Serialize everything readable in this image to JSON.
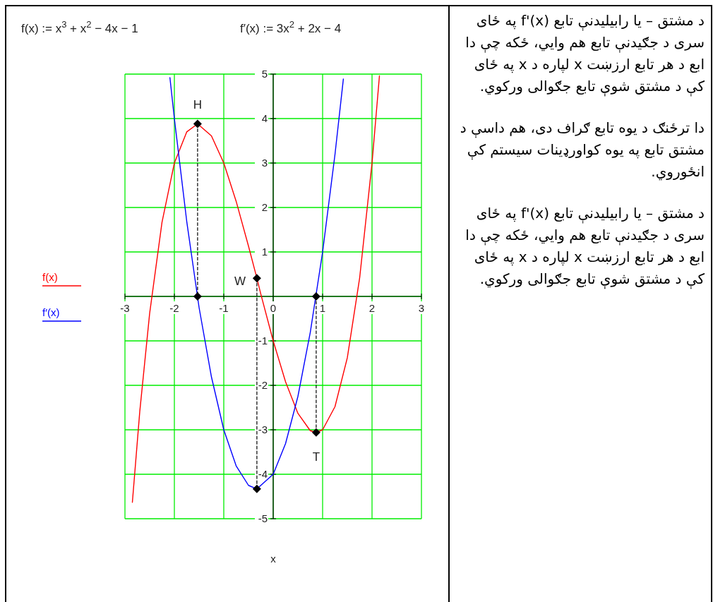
{
  "chart_data": {
    "type": "line",
    "title": "f(x) := x$^{3}$ + x$^{2}$ − 4x − 1",
    "subtitle": "f′(x) := 3x$^{2}$ + 2x − 4",
    "xlabel": "x",
    "xlim": [
      -3,
      3
    ],
    "ylim": [
      -5,
      5
    ],
    "xticks": [
      -3,
      -2,
      -1,
      0,
      1,
      2,
      3
    ],
    "yticks": [
      -5,
      -4,
      -3,
      -2,
      -1,
      {
        "value": 0,
        "label": null
      },
      1,
      2,
      3,
      4,
      5
    ],
    "grid": true,
    "legend": "left",
    "series": [
      {
        "name": "f(x)",
        "color": "#ff0000",
        "x": [
          -2.85,
          -2.7,
          -2.5,
          -2.25,
          -2,
          -1.75,
          -1.53,
          -1.25,
          -1,
          -0.75,
          -0.5,
          -0.33,
          -0.25,
          0,
          0.25,
          0.5,
          0.75,
          0.87,
          1,
          1.25,
          1.5,
          1.75,
          2,
          2.15
        ],
        "values": [
          -4.63,
          -2.59,
          -0.38,
          1.67,
          3,
          3.7,
          3.88,
          3.61,
          3,
          2.14,
          1.13,
          0.41,
          0.05,
          -1,
          -1.92,
          -2.63,
          -3.02,
          -3.06,
          -3,
          -2.48,
          -1.38,
          0.42,
          3,
          4.96
        ]
      },
      {
        "name": "f′(x)",
        "color": "#0000ff",
        "x": [
          -2.09,
          -2,
          -1.75,
          -1.5,
          -1.25,
          -1,
          -0.75,
          -0.5,
          -0.33,
          0,
          0.25,
          0.5,
          0.75,
          1,
          1.25,
          1.42
        ],
        "values": [
          4.92,
          4,
          1.69,
          -0.25,
          -1.81,
          -3,
          -3.81,
          -4.25,
          -4.33,
          -4,
          -3.31,
          -2.25,
          -0.81,
          1,
          3.19,
          4.89
        ]
      },
      {
        "type": "line",
        "color": "#000000",
        "line_style": "dashed",
        "x": [
          -1.53,
          -1.53
        ],
        "values": [
          3.88,
          0
        ]
      },
      {
        "type": "line",
        "color": "#000000",
        "line_style": "dashed",
        "x": [
          -0.33,
          -0.33
        ],
        "values": [
          0.41,
          -4.33
        ]
      },
      {
        "type": "line",
        "color": "#000000",
        "line_style": "dashed",
        "x": [
          0.87,
          0.87
        ],
        "values": [
          -3.06,
          0
        ]
      },
      {
        "type": "scatter",
        "color": "#000000",
        "marker": "diamond",
        "x": [
          -1.53,
          -1.53,
          -0.33,
          -0.33,
          0.87,
          0.87
        ],
        "values": [
          3.88,
          0,
          0.41,
          -4.33,
          -3.06,
          0
        ]
      }
    ],
    "annotations": [
      {
        "text": "H",
        "x": -1.53,
        "y": 3.88
      },
      {
        "text": "W",
        "x": -0.33,
        "y": 0.41
      },
      {
        "text": "T",
        "x": 0.87,
        "y": -3.06
      },
      "د مشتق – يا رابيليدنې تابع f'(x) په ځای سرى د جګيدنې تابع هم وايي، ځکه چې دا ابع د هر تابع ارزښت x لپاره د x په ځای کې د مشتق شوې تابع جګوالى ورکوي.",
      "دا ترځنګ د يوه تابع ګراف دى، هم داسې د مشتق تابع په يوه کواورډينات سيستم کې انځوروي.",
      "د مشتق – يا رابيليدنې تابع f'(x) په ځای سرى د جګيدنې تابع هم وايي، ځکه چې دا ابع د هر تابع ارزښت x لپاره د x په ځای کې د مشتق شوې تابع جګوالى ورکوي."
    ]
  }
}
